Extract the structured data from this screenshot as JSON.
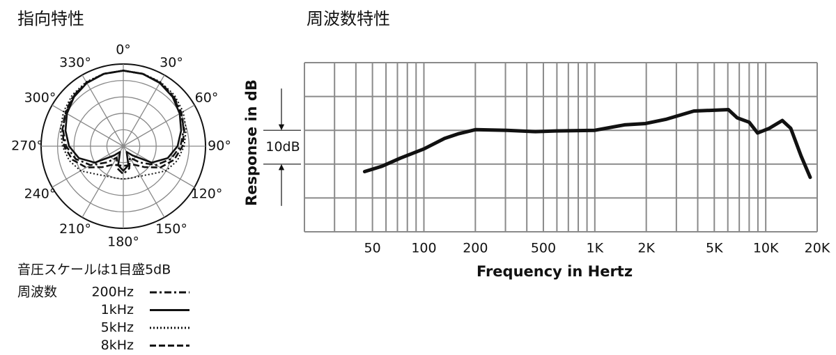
{
  "chart_data": [
    {
      "type": "polar",
      "title": "指向特性",
      "note": "音圧スケールは1目盛5dB",
      "legend_title": "周波数",
      "theta": [
        0,
        15,
        30,
        45,
        60,
        75,
        90,
        105,
        120,
        135,
        150,
        165,
        180,
        195,
        210,
        225,
        240,
        255,
        270,
        285,
        300,
        315,
        330,
        345
      ],
      "thetaticks": [
        {
          "value": 0,
          "label": "0°"
        },
        {
          "value": 30,
          "label": "30°"
        },
        {
          "value": 60,
          "label": "60°"
        },
        {
          "value": 90,
          "label": "90°"
        },
        {
          "value": 120,
          "label": "120°"
        },
        {
          "value": 150,
          "label": "150°"
        },
        {
          "value": 180,
          "label": "180°"
        },
        {
          "value": 210,
          "label": "210°"
        },
        {
          "value": 240,
          "label": "240°"
        },
        {
          "value": 270,
          "label": "270°"
        },
        {
          "value": 300,
          "label": "300°"
        },
        {
          "value": 330,
          "label": "330°"
        }
      ],
      "rlim": [
        -25,
        0
      ],
      "rticks": [
        -20,
        -15,
        -10,
        -5,
        0
      ],
      "series": [
        {
          "name": "200Hz",
          "color": "#111111",
          "dash": "dashdot",
          "values": [
            -2,
            -2.2,
            -2.6,
            -3.4,
            -4.6,
            -6,
            -7.6,
            -10,
            -13.5,
            -18,
            -21,
            -18,
            -16.5,
            -18,
            -21,
            -18,
            -13.5,
            -10,
            -7.6,
            -6,
            -4.6,
            -3.4,
            -2.6,
            -2.2
          ]
        },
        {
          "name": "1kHz",
          "color": "#111111",
          "dash": "solid",
          "values": [
            -2,
            -2.2,
            -2.8,
            -3.8,
            -5.2,
            -6.8,
            -8.5,
            -11,
            -15,
            -21,
            -23,
            -19,
            -17.5,
            -19,
            -23,
            -21,
            -15,
            -11,
            -8.5,
            -6.8,
            -5.2,
            -3.8,
            -2.8,
            -2.2
          ]
        },
        {
          "name": "5kHz",
          "color": "#111111",
          "dash": "dotted",
          "values": [
            -2,
            -2.1,
            -2.4,
            -3,
            -4,
            -5.2,
            -6.5,
            -8,
            -10,
            -13,
            -14.5,
            -15,
            -15,
            -15,
            -14.5,
            -13,
            -10,
            -8,
            -6.5,
            -5.2,
            -4,
            -3,
            -2.4,
            -2.1
          ]
        },
        {
          "name": "8kHz",
          "color": "#111111",
          "dash": "dashed",
          "values": [
            -2,
            -2.2,
            -2.7,
            -3.6,
            -4.8,
            -5.8,
            -7,
            -9,
            -12,
            -16,
            -18.5,
            -19,
            -19,
            -19,
            -18.5,
            -16,
            -12,
            -9,
            -7,
            -5.8,
            -4.8,
            -3.6,
            -2.7,
            -2.2
          ]
        }
      ]
    },
    {
      "type": "line",
      "title": "周波数特性",
      "xlabel": "Frequency in Hertz",
      "ylabel": "Response in dB",
      "annotation": {
        "text": "10dB",
        "from": 0,
        "to": -10
      },
      "log_x": true,
      "grid": true,
      "color": "#111111",
      "xlim": [
        20,
        20000
      ],
      "ylim": [
        -30,
        20
      ],
      "xticks": [
        50,
        100,
        200,
        500,
        {
          "value": 1000,
          "label": "1K"
        },
        {
          "value": 2000,
          "label": "2K"
        },
        {
          "value": 5000,
          "label": "5K"
        },
        {
          "value": 10000,
          "label": "10K"
        },
        {
          "value": 20000,
          "label": "20K"
        }
      ],
      "minor_xticks": [
        20,
        30,
        40,
        60,
        70,
        80,
        90,
        300,
        400,
        600,
        700,
        800,
        900,
        3000,
        4000,
        6000,
        7000,
        8000,
        9000
      ],
      "yticks": [
        -30,
        -20,
        -10,
        0,
        10,
        20
      ],
      "x": [
        45,
        57,
        73,
        100,
        132,
        160,
        201,
        306,
        450,
        590,
        1000,
        1490,
        1980,
        2630,
        3800,
        6050,
        6800,
        8000,
        8960,
        10500,
        12500,
        14000,
        16100,
        18200
      ],
      "values": [
        -12.2,
        -10.6,
        -8.2,
        -5.5,
        -2.4,
        -1,
        0.2,
        0,
        -0.4,
        -0.2,
        0,
        1.6,
        2,
        3.3,
        5.7,
        6.1,
        3.7,
        2.4,
        -0.8,
        0.6,
        2.9,
        0.6,
        -7.6,
        -13.9
      ]
    }
  ]
}
